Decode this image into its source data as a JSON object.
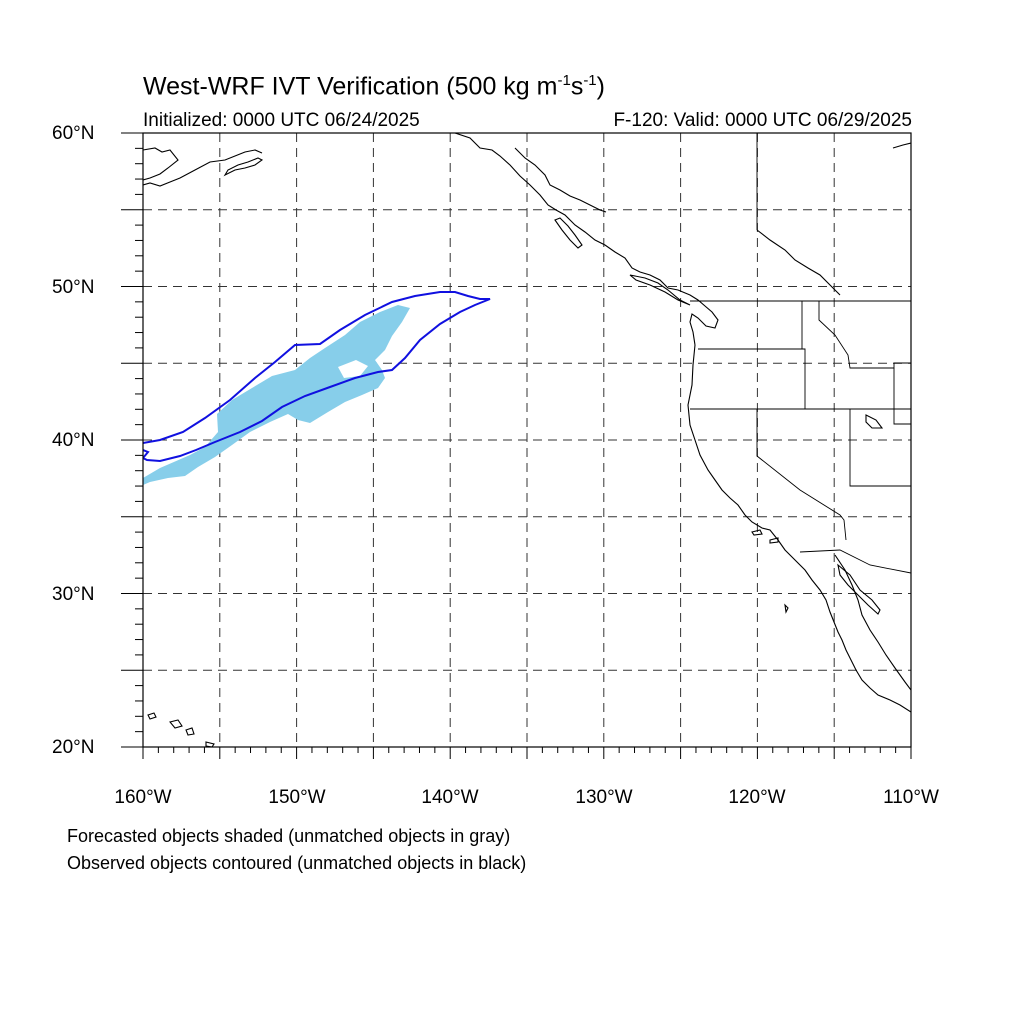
{
  "header": {
    "title_main": "West-WRF IVT Verification (500 kg m",
    "title_exp1": "-1",
    "title_mid": "s",
    "title_exp2": "-1",
    "title_end": ")",
    "init_text": "Initialized: 0000 UTC 06/24/2025",
    "valid_text": "F-120: Valid: 0000 UTC 06/29/2025"
  },
  "axes": {
    "lat_labels": [
      "60°N",
      "50°N",
      "40°N",
      "30°N",
      "20°N"
    ],
    "lon_labels": [
      "160°W",
      "150°W",
      "140°W",
      "130°W",
      "120°W",
      "110°W"
    ],
    "lat_range": [
      20,
      60
    ],
    "lon_range": [
      -160,
      -110
    ],
    "grid_step_deg": 5
  },
  "legend": {
    "forecast_note": "Forecasted objects shaded (unmatched objects in gray)",
    "observed_note": "Observed objects contoured (unmatched objects in black)"
  },
  "colors": {
    "forecast_fill": "#87ceea",
    "observed_contour": "#1010e0",
    "coastline": "#000000",
    "grid": "#333333"
  }
}
